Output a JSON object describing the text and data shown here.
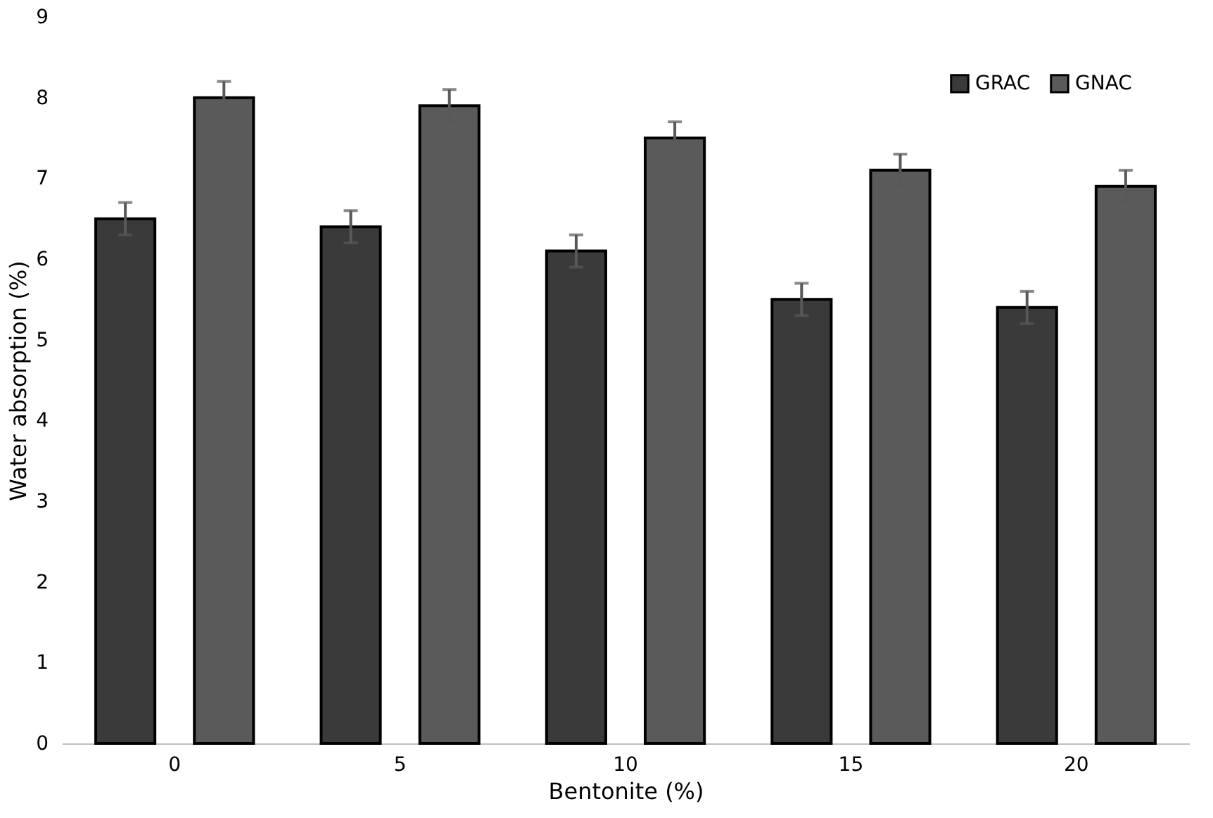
{
  "chart_data": {
    "type": "bar",
    "xlabel": "Bentonite (%)",
    "ylabel": "Water absorption (%)",
    "categories": [
      "0",
      "5",
      "10",
      "15",
      "20"
    ],
    "series": [
      {
        "name": "GRAC",
        "color": "#3a3a3a",
        "values": [
          6.5,
          6.4,
          6.1,
          5.5,
          5.4
        ],
        "errors": [
          0.2,
          0.2,
          0.2,
          0.2,
          0.2
        ]
      },
      {
        "name": "GNAC",
        "color": "#5a5a5a",
        "values": [
          8.0,
          7.9,
          7.5,
          7.1,
          6.9
        ],
        "errors": [
          0.2,
          0.2,
          0.2,
          0.2,
          0.2
        ]
      }
    ],
    "ylim": [
      0,
      9
    ],
    "yticks": [
      0,
      1,
      2,
      3,
      4,
      5,
      6,
      7,
      8,
      9
    ],
    "grid": false,
    "legend": "top right"
  }
}
